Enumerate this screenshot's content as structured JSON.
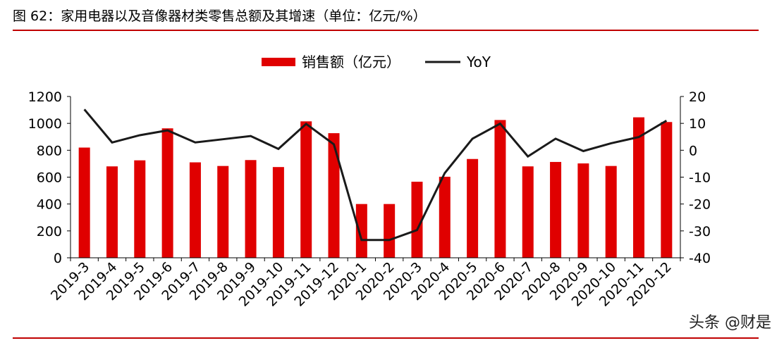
{
  "header": {
    "title": "图 62：家用电器以及音像器材类零售总额及其增速（单位：亿元/%）"
  },
  "watermark": "头条 @财是",
  "chart_data": {
    "type": "bar",
    "categories": [
      "2019-3",
      "2019-4",
      "2019-5",
      "2019-6",
      "2019-7",
      "2019-8",
      "2019-9",
      "2019-10",
      "2019-11",
      "2019-12",
      "2020-1",
      "2020-2",
      "2020-3",
      "2020-4",
      "2020-5",
      "2020-6",
      "2020-7",
      "2020-8",
      "2020-9",
      "2020-10",
      "2020-11",
      "2020-12"
    ],
    "series": [
      {
        "name": "销售额（亿元）",
        "type": "bar",
        "axis": "left",
        "color": "#e00000",
        "values": [
          820,
          680,
          725,
          963,
          710,
          683,
          727,
          675,
          1015,
          927,
          400,
          400,
          566,
          603,
          735,
          1025,
          680,
          713,
          702,
          683,
          1045,
          1010
        ]
      },
      {
        "name": "YoY",
        "type": "line",
        "axis": "right",
        "color": "#1a1a1a",
        "values": [
          15.2,
          2.9,
          5.6,
          7.4,
          2.9,
          4.1,
          5.3,
          0.5,
          9.8,
          2.2,
          -33.4,
          -33.4,
          -29.7,
          -8.5,
          4.3,
          9.9,
          -2.3,
          4.3,
          -0.3,
          2.6,
          4.9,
          11.0
        ]
      }
    ],
    "y_left": {
      "ticks": [
        0,
        200,
        400,
        600,
        800,
        1000,
        1200
      ],
      "ylim": [
        0,
        1200
      ]
    },
    "y_right": {
      "ticks": [
        -40,
        -30,
        -20,
        -10,
        0,
        10,
        20
      ],
      "ylim": [
        -40,
        20
      ]
    },
    "legend": {
      "position": "top-center"
    },
    "grid": false
  }
}
